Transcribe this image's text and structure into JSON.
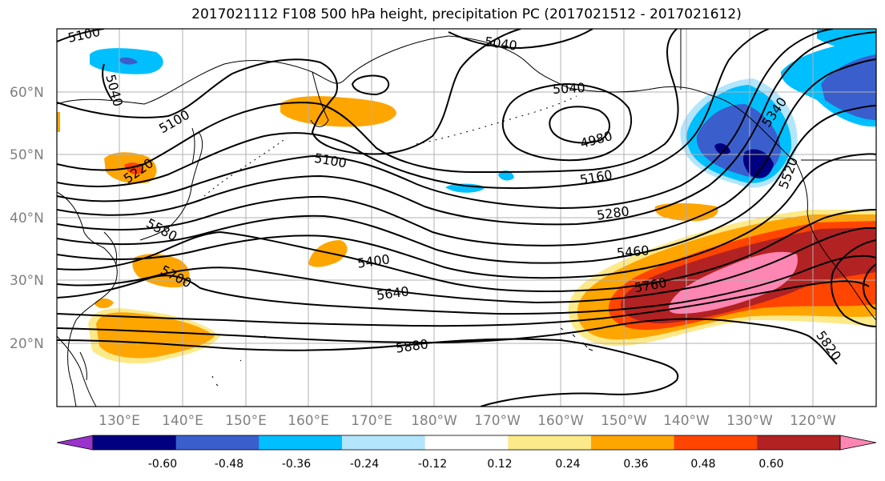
{
  "title": "2017021112 F108 500 hPa height, precipitation PC (2017021512 - 2017021612)",
  "lon_ticks": [
    "130°E",
    "140°E",
    "150°E",
    "160°E",
    "170°E",
    "180°W",
    "170°W",
    "160°W",
    "150°W",
    "140°W",
    "130°W",
    "120°W"
  ],
  "lat_ticks": [
    "60°N",
    "50°N",
    "40°N",
    "30°N",
    "20°N"
  ],
  "contour_labels": [
    "5100",
    "5040",
    "5040",
    "5040",
    "5100",
    "5100",
    "5220",
    "4980",
    "5160",
    "5280",
    "5400",
    "5460",
    "5580",
    "5640",
    "5700",
    "5760",
    "5880",
    "5820",
    "5340",
    "5520"
  ],
  "colorbar": {
    "tick_labels": [
      "-0.60",
      "-0.48",
      "-0.36",
      "-0.24",
      "-0.12",
      "0.12",
      "0.24",
      "0.36",
      "0.48",
      "0.60"
    ],
    "colors": [
      "#9933cc",
      "#000080",
      "#3a5fcd",
      "#00bfff",
      "#b3e5fc",
      "#ffffff",
      "#fce98a",
      "#ffa500",
      "#ff4500",
      "#b22222",
      "#ff85b3"
    ]
  },
  "fill_colors": {
    "light_yellow": "#fce98a",
    "orange": "#ffa500",
    "red_orange": "#ff4500",
    "dark_red": "#b22222",
    "pink": "#ff85b3",
    "light_blue": "#b3e5fc",
    "sky_blue": "#00bfff",
    "mid_blue": "#3a5fcd",
    "navy": "#000080"
  }
}
